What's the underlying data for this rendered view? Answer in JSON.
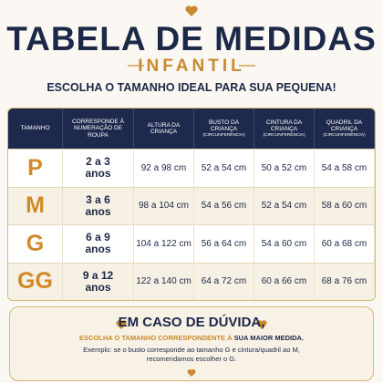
{
  "header": {
    "title": "TABELA DE MEDIDAS",
    "subtitle": "INFANTIL",
    "tagline": "ESCOLHA O TAMANHO IDEAL PARA SUA PEQUENA!"
  },
  "table": {
    "columns": [
      [
        "TAMANHO"
      ],
      [
        "CORRESPONDE À",
        "NUMERAÇÃO DE ROUPA"
      ],
      [
        "ALTURA DA",
        "CRIANÇA"
      ],
      [
        "BUSTO DA",
        "CRIANÇA",
        "(CIRCUNFERÊNCIA)"
      ],
      [
        "CINTURA DA",
        "CRIANÇA",
        "(CIRCUNFERÊNCIA)"
      ],
      [
        "QUADRIL DA",
        "CRIANÇA",
        "(CIRCUNFERÊNCIA)"
      ]
    ],
    "rows": [
      [
        "P",
        [
          "2 a 3",
          "anos"
        ],
        "92 a 98 cm",
        "52 a 54 cm",
        "50 a 52 cm",
        "54 a 58 cm"
      ],
      [
        "M",
        [
          "3 a 6",
          "anos"
        ],
        "98 a 104 cm",
        "54 a 56 cm",
        "52 a 54 cm",
        "58 a 60 cm"
      ],
      [
        "G",
        [
          "6 a 9",
          "anos"
        ],
        "104 a 122 cm",
        "56 a 64 cm",
        "54 a 60 cm",
        "60 a 68 cm"
      ],
      [
        "GG",
        [
          "9 a 12",
          "anos"
        ],
        "122 a 140 cm",
        "64 a 72 cm",
        "60 a 66 cm",
        "68 a 76 cm"
      ]
    ]
  },
  "footer": {
    "heading": "EM CASO DE DÚVIDA,",
    "advice": [
      "ESCOLHA O TAMANHO CORRESPONDENTE À",
      "SUA MAIOR MEDIDA."
    ],
    "example": [
      "Exemplo: se o busto  corresponde ao tamanho G e cintura/quadril ao M,",
      "recomendamos escolher o G."
    ]
  }
}
